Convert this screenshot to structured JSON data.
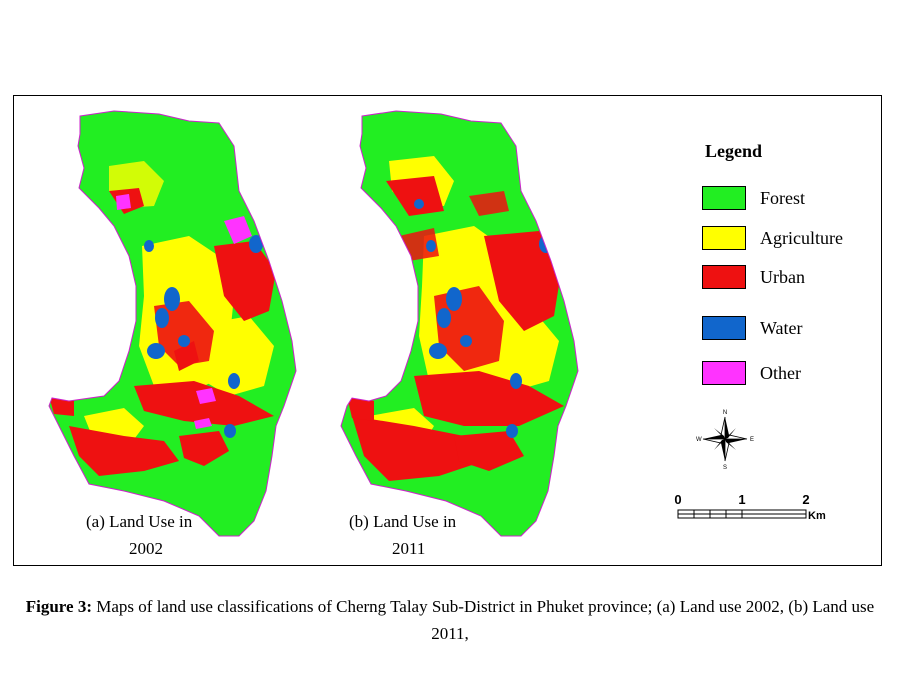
{
  "maps": [
    {
      "caption_line1": "(a) Land Use in",
      "caption_line2": "2002"
    },
    {
      "caption_line1": "(b) Land Use in",
      "caption_line2": "2011"
    }
  ],
  "legend": {
    "title": "Legend",
    "items": [
      {
        "label": "Forest",
        "color": "#22ee22"
      },
      {
        "label": "Agriculture",
        "color": "#ffff00"
      },
      {
        "label": "Urban",
        "color": "#ee1111"
      },
      {
        "label": "Water",
        "color": "#1166cc"
      },
      {
        "label": "Other",
        "color": "#ff33ff"
      }
    ]
  },
  "north_arrow": {
    "n": "N",
    "s": "S",
    "e": "E",
    "w": "W"
  },
  "scale_bar": {
    "ticks": [
      "0",
      "1",
      "2"
    ],
    "unit": "Km"
  },
  "figure_caption": {
    "label": "Figure 3:",
    "text": " Maps of land use classifications of Cherng Talay Sub-District in Phuket province; (a) Land use 2002, (b) Land use 2011,"
  }
}
